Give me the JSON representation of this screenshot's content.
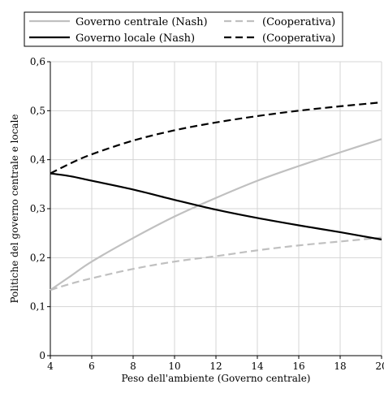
{
  "chart_data": {
    "type": "line",
    "title": "",
    "xlabel": "Peso dell'ambiente (Governo centrale)",
    "ylabel": "Politiche del governo centrale e locale",
    "xlim": [
      4,
      20
    ],
    "ylim": [
      0,
      0.6
    ],
    "xticks": [
      4,
      6,
      8,
      10,
      12,
      14,
      16,
      18,
      20
    ],
    "yticks": [
      0,
      0.1,
      0.2,
      0.3,
      0.4,
      0.5,
      0.6
    ],
    "xtick_labels": [
      "4",
      "6",
      "8",
      "10",
      "12",
      "14",
      "16",
      "18",
      "20"
    ],
    "ytick_labels": [
      "0",
      "0,1",
      "0,2",
      "0,3",
      "0,4",
      "0,5",
      "0,6"
    ],
    "grid": true,
    "legend_position": "top",
    "x": [
      4,
      5,
      6,
      8,
      10,
      12,
      14,
      16,
      18,
      20
    ],
    "series": [
      {
        "name": "Governo centrale (Nash)",
        "color": "#c0c0c0",
        "dash": "solid",
        "values": [
          0.134,
          0.163,
          0.192,
          0.24,
          0.284,
          0.322,
          0.357,
          0.387,
          0.415,
          0.442
        ]
      },
      {
        "name": "(Cooperativa)",
        "color": "#c0c0c0",
        "dash": "dashed",
        "values": [
          0.134,
          0.147,
          0.158,
          0.177,
          0.192,
          0.203,
          0.215,
          0.225,
          0.233,
          0.241
        ]
      },
      {
        "name": "Governo locale (Nash)",
        "color": "#000000",
        "dash": "solid",
        "values": [
          0.372,
          0.366,
          0.357,
          0.339,
          0.318,
          0.298,
          0.281,
          0.266,
          0.252,
          0.237
        ]
      },
      {
        "name": "(Cooperativa)",
        "color": "#000000",
        "dash": "dashed",
        "values": [
          0.372,
          0.393,
          0.411,
          0.439,
          0.46,
          0.476,
          0.489,
          0.5,
          0.509,
          0.517
        ]
      }
    ]
  }
}
